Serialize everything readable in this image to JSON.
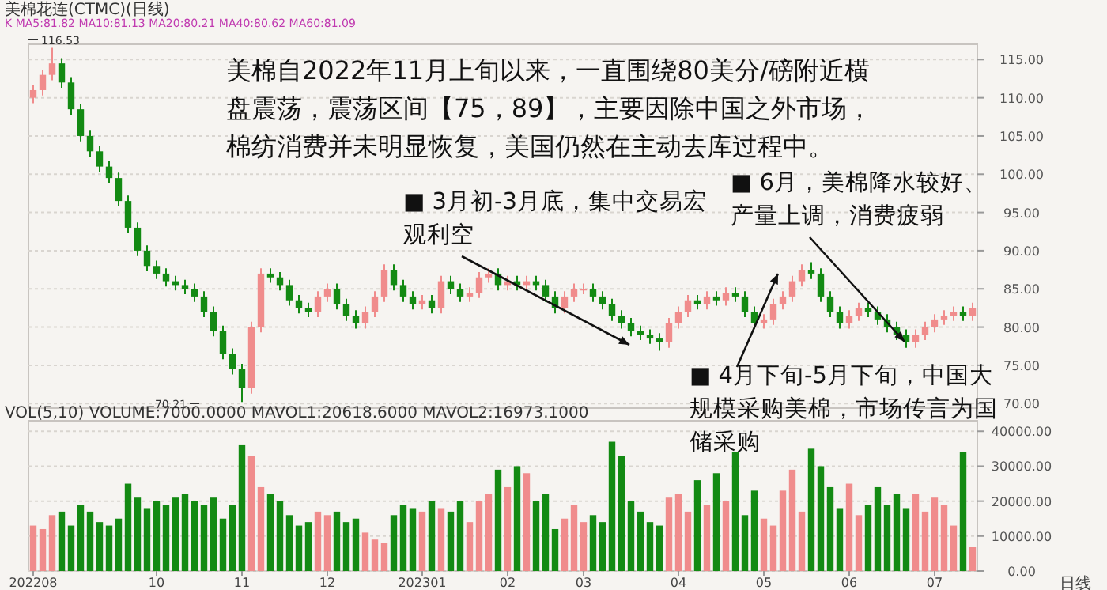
{
  "chart_data": [
    {
      "type": "candlestick",
      "title": "美棉花连(CTMC)(日线)",
      "categories": [
        null,
        null,
        null,
        null,
        null,
        null,
        null,
        null,
        null,
        null,
        null,
        null,
        null,
        null,
        null,
        null,
        null,
        null,
        null,
        null,
        null,
        null,
        null,
        null,
        null,
        null,
        null,
        null,
        null,
        null,
        null,
        null,
        null,
        null,
        null,
        null,
        null,
        null,
        null,
        null,
        null,
        null,
        null,
        null,
        null,
        null,
        null,
        null,
        null,
        null,
        null,
        null,
        null,
        null,
        null,
        null,
        null,
        null,
        null,
        null,
        null,
        null,
        null,
        null,
        null,
        null,
        null,
        null,
        null,
        null,
        null,
        null,
        null,
        null,
        null,
        null,
        null,
        null,
        null,
        null,
        null,
        null,
        null,
        null,
        null,
        null,
        null,
        null,
        null,
        null,
        null,
        null,
        null,
        null,
        null,
        null,
        null,
        null,
        null,
        null
      ],
      "ohlc": [
        [
          110,
          111.7,
          109.3,
          111
        ],
        [
          111,
          113.7,
          110.3,
          113
        ],
        [
          113,
          116.53,
          112.3,
          114.5
        ],
        [
          114.5,
          115.2,
          111.3,
          112
        ],
        [
          112,
          112.7,
          107.8,
          108.5
        ],
        [
          108.5,
          109.2,
          104.3,
          105
        ],
        [
          105,
          105.7,
          102.3,
          103
        ],
        [
          103,
          103.7,
          100.3,
          101
        ],
        [
          101,
          101.7,
          98.8,
          99.5
        ],
        [
          99.5,
          100.2,
          95.8,
          96.5
        ],
        [
          96.5,
          97.2,
          92.3,
          93
        ],
        [
          93,
          93.7,
          89.3,
          90
        ],
        [
          90,
          90.7,
          87.3,
          88
        ],
        [
          88,
          88.7,
          86.3,
          87
        ],
        [
          87,
          87.7,
          85.3,
          86
        ],
        [
          86,
          86.7,
          84.8,
          85.5
        ],
        [
          85.5,
          86.2,
          84.3,
          85
        ],
        [
          85,
          85.7,
          83.3,
          84
        ],
        [
          84,
          84.7,
          81.3,
          82
        ],
        [
          82,
          82.7,
          78.8,
          79.5
        ],
        [
          79.5,
          80.2,
          75.8,
          76.5
        ],
        [
          76.5,
          77.2,
          73.8,
          74.5
        ],
        [
          74.5,
          75.2,
          70.21,
          72
        ],
        [
          72,
          80.7,
          71.3,
          80
        ],
        [
          80,
          87.7,
          79.3,
          87
        ],
        [
          87,
          87.7,
          85.8,
          86.5
        ],
        [
          86.5,
          87.2,
          84.8,
          85.5
        ],
        [
          85.5,
          86.2,
          82.8,
          83.5
        ],
        [
          83.5,
          84.2,
          81.8,
          82.5
        ],
        [
          82.5,
          83.2,
          81.3,
          82
        ],
        [
          82,
          84.7,
          81.3,
          84
        ],
        [
          84,
          85.7,
          83.3,
          85
        ],
        [
          85,
          85.7,
          82.3,
          83
        ],
        [
          83,
          83.7,
          80.8,
          81.5
        ],
        [
          81.5,
          82.2,
          79.8,
          80.5
        ],
        [
          80.5,
          82.7,
          79.8,
          82
        ],
        [
          82,
          84.7,
          81.3,
          84
        ],
        [
          84,
          88.2,
          83.3,
          87.5
        ],
        [
          87.5,
          88.2,
          84.8,
          85.5
        ],
        [
          85.5,
          86.2,
          83.3,
          84
        ],
        [
          84,
          84.7,
          82.3,
          83
        ],
        [
          83,
          84.2,
          82.3,
          83.5
        ],
        [
          83.5,
          84.2,
          81.8,
          82.5
        ],
        [
          82.5,
          86.7,
          81.8,
          86
        ],
        [
          86,
          86.7,
          84.3,
          85
        ],
        [
          85,
          85.7,
          83.3,
          84
        ],
        [
          84,
          85.2,
          83.3,
          84.5
        ],
        [
          84.5,
          87.2,
          83.8,
          86.5
        ],
        [
          86.5,
          87.7,
          85.8,
          87
        ],
        [
          87,
          87.7,
          84.8,
          85.5
        ],
        [
          85.5,
          86.7,
          84.8,
          86
        ],
        [
          86,
          86.7,
          84.8,
          85.5
        ],
        [
          85.5,
          86.7,
          84.8,
          86
        ],
        [
          86,
          86.7,
          84.8,
          85.5
        ],
        [
          85.5,
          86.2,
          83.3,
          84
        ],
        [
          84,
          84.7,
          81.8,
          82.5
        ],
        [
          82.5,
          84.7,
          81.8,
          84
        ],
        [
          84,
          85.7,
          83.3,
          85
        ],
        [
          85,
          85.7,
          84.3,
          85
        ],
        [
          85,
          85.7,
          83.3,
          84
        ],
        [
          84,
          84.7,
          82.3,
          83
        ],
        [
          83,
          83.7,
          80.8,
          81.5
        ],
        [
          81.5,
          82.2,
          79.8,
          80.5
        ],
        [
          80.5,
          81.2,
          78.8,
          79.5
        ],
        [
          79.5,
          80.2,
          78.3,
          79
        ],
        [
          79,
          79.7,
          77.8,
          78.5
        ],
        [
          78.5,
          79.2,
          76.9,
          78
        ],
        [
          78,
          81.2,
          77.3,
          80.5
        ],
        [
          80.5,
          82.7,
          79.8,
          82
        ],
        [
          82,
          84.2,
          81.3,
          83.5
        ],
        [
          83.5,
          84.2,
          82.3,
          83
        ],
        [
          83,
          84.7,
          82.3,
          84
        ],
        [
          84,
          84.7,
          82.8,
          83.5
        ],
        [
          83.5,
          85.2,
          82.8,
          84.5
        ],
        [
          84.5,
          85.2,
          83.3,
          84
        ],
        [
          84,
          84.7,
          81.3,
          82
        ],
        [
          82,
          82.7,
          79.8,
          80.5
        ],
        [
          80.5,
          81.7,
          79.8,
          81
        ],
        [
          81,
          83.7,
          80.3,
          83
        ],
        [
          83,
          84.7,
          82.3,
          84
        ],
        [
          84,
          86.7,
          83.3,
          86
        ],
        [
          86,
          88.2,
          85.3,
          87.5
        ],
        [
          87.5,
          88.5,
          86.3,
          87
        ],
        [
          87,
          87.7,
          83.3,
          84
        ],
        [
          84,
          84.7,
          81.3,
          82
        ],
        [
          82,
          82.7,
          79.8,
          80.5
        ],
        [
          80.5,
          82.2,
          79.8,
          81.5
        ],
        [
          81.5,
          83.2,
          80.8,
          82.5
        ],
        [
          82.5,
          83.2,
          81.3,
          82
        ],
        [
          82,
          82.7,
          80.3,
          81
        ],
        [
          81,
          81.7,
          79.3,
          80
        ],
        [
          80,
          80.7,
          78.3,
          79
        ],
        [
          79,
          79.7,
          77.3,
          78
        ],
        [
          78,
          79.7,
          77.3,
          79
        ],
        [
          79,
          80.7,
          78.3,
          80
        ],
        [
          80,
          81.7,
          79.3,
          81
        ],
        [
          81,
          82.2,
          80.3,
          81.5
        ],
        [
          81.5,
          82.7,
          80.8,
          82
        ],
        [
          82,
          82.7,
          80.8,
          81.5
        ],
        [
          81.5,
          83.2,
          80.8,
          82.5
        ]
      ],
      "colors": [
        "#f08c8c",
        "#f08c8c",
        "#f08c8c",
        "#138a13",
        "#138a13",
        "#138a13",
        "#138a13",
        "#138a13",
        "#138a13",
        "#138a13",
        "#138a13",
        "#138a13",
        "#138a13",
        "#138a13",
        "#138a13",
        "#138a13",
        "#138a13",
        "#138a13",
        "#138a13",
        "#138a13",
        "#138a13",
        "#138a13",
        "#138a13",
        "#f08c8c",
        "#f08c8c",
        "#138a13",
        "#138a13",
        "#138a13",
        "#138a13",
        "#138a13",
        "#f08c8c",
        "#f08c8c",
        "#138a13",
        "#138a13",
        "#138a13",
        "#f08c8c",
        "#f08c8c",
        "#f08c8c",
        "#138a13",
        "#138a13",
        "#138a13",
        "#f08c8c",
        "#138a13",
        "#f08c8c",
        "#138a13",
        "#138a13",
        "#f08c8c",
        "#f08c8c",
        "#f08c8c",
        "#138a13",
        "#f08c8c",
        "#138a13",
        "#f08c8c",
        "#138a13",
        "#138a13",
        "#138a13",
        "#f08c8c",
        "#f08c8c",
        "#f08c8c",
        "#138a13",
        "#138a13",
        "#138a13",
        "#138a13",
        "#138a13",
        "#138a13",
        "#138a13",
        "#138a13",
        "#f08c8c",
        "#f08c8c",
        "#f08c8c",
        "#138a13",
        "#f08c8c",
        "#138a13",
        "#f08c8c",
        "#138a13",
        "#138a13",
        "#138a13",
        "#f08c8c",
        "#f08c8c",
        "#f08c8c",
        "#f08c8c",
        "#f08c8c",
        "#138a13",
        "#138a13",
        "#138a13",
        "#138a13",
        "#f08c8c",
        "#f08c8c",
        "#138a13",
        "#138a13",
        "#138a13",
        "#138a13",
        "#138a13",
        "#f08c8c",
        "#f08c8c",
        "#f08c8c",
        "#f08c8c",
        "#f08c8c",
        "#138a13",
        "#f08c8c"
      ],
      "ylim": [
        69.4,
        117
      ],
      "yticks": [
        {
          "value": 70,
          "label": "70.00"
        },
        {
          "value": 75,
          "label": "75.00"
        },
        {
          "value": 80,
          "label": "80.00"
        },
        {
          "value": 85,
          "label": "85.00"
        },
        {
          "value": 90,
          "label": "90.00"
        },
        {
          "value": 95,
          "label": "95.00"
        },
        {
          "value": 100,
          "label": "100.00"
        },
        {
          "value": 105,
          "label": "105.00"
        },
        {
          "value": 110,
          "label": "110.00"
        },
        {
          "value": 115,
          "label": "115.00"
        }
      ],
      "tick_labels": "y",
      "grid": "y",
      "annotations": [
        "K  MA5:81.82  MA10:81.13  MA20:80.21  MA40:80.62  MA60:81.09",
        "美棉自2022年11月上旬以来，一直围绕80美分/磅附近横盘震荡，震荡区间【75，89】，主要因除中国之外市场，棉纺消费并未明显恢复，美国仍然在主动去库过程中。",
        "■ 3月初-3月底，集中交易宏观利空",
        "■ 6月，美棉降水较好、产量上调，消费疲弱",
        "■ 4月下旬-5月下旬，中国大规模采购美棉，市场传言为国储采购",
        "116.53",
        "70.21"
      ]
    },
    {
      "type": "bar",
      "title": "VOL(5,10)  VOLUME:7000.0000  MAVOL1:20618.6000  MAVOL2:16973.1000",
      "categories": [
        "202208",
        null,
        null,
        null,
        null,
        null,
        null,
        null,
        null,
        null,
        null,
        null,
        null,
        "10",
        null,
        null,
        null,
        null,
        null,
        null,
        null,
        null,
        "11",
        null,
        null,
        null,
        null,
        null,
        null,
        null,
        null,
        "12",
        null,
        null,
        null,
        null,
        null,
        null,
        null,
        null,
        null,
        "202301",
        null,
        null,
        null,
        null,
        null,
        null,
        null,
        null,
        "02",
        null,
        null,
        null,
        null,
        null,
        null,
        null,
        "03",
        null,
        null,
        null,
        null,
        null,
        null,
        null,
        null,
        null,
        "04",
        null,
        null,
        null,
        null,
        null,
        null,
        null,
        null,
        "05",
        null,
        null,
        null,
        null,
        null,
        null,
        null,
        null,
        "06",
        null,
        null,
        null,
        null,
        null,
        null,
        null,
        null,
        "07",
        null,
        null,
        null,
        null
      ],
      "values": [
        13000,
        12000,
        16000,
        17000,
        13000,
        19000,
        17000,
        14000,
        13000,
        15000,
        25000,
        21000,
        18000,
        20000,
        19000,
        21000,
        22000,
        20000,
        19000,
        21000,
        15000,
        19000,
        36000,
        33000,
        24000,
        22000,
        20000,
        16000,
        13000,
        14000,
        17000,
        16000,
        17000,
        14000,
        15000,
        11000,
        9000,
        8000,
        16000,
        19000,
        18000,
        17000,
        20000,
        18000,
        17000,
        20000,
        14000,
        20000,
        22000,
        29000,
        24000,
        30000,
        28000,
        20000,
        22000,
        12000,
        15000,
        19000,
        14000,
        16000,
        14000,
        37000,
        33000,
        20000,
        17000,
        14000,
        13000,
        21000,
        22000,
        17000,
        26000,
        19000,
        28000,
        20000,
        34000,
        16000,
        23000,
        15000,
        13000,
        23000,
        29000,
        17000,
        35000,
        30000,
        24000,
        18000,
        25000,
        16000,
        19000,
        24000,
        19000,
        22000,
        18000,
        22000,
        17000,
        21000,
        19000,
        13000,
        34000,
        7000
      ],
      "colors": [
        "#f08c8c",
        "#f08c8c",
        "#f08c8c",
        "#138a13",
        "#138a13",
        "#138a13",
        "#138a13",
        "#138a13",
        "#138a13",
        "#138a13",
        "#138a13",
        "#138a13",
        "#138a13",
        "#138a13",
        "#138a13",
        "#138a13",
        "#138a13",
        "#138a13",
        "#138a13",
        "#138a13",
        "#138a13",
        "#138a13",
        "#138a13",
        "#f08c8c",
        "#f08c8c",
        "#138a13",
        "#138a13",
        "#138a13",
        "#138a13",
        "#138a13",
        "#f08c8c",
        "#f08c8c",
        "#138a13",
        "#138a13",
        "#138a13",
        "#f08c8c",
        "#f08c8c",
        "#f08c8c",
        "#138a13",
        "#138a13",
        "#138a13",
        "#f08c8c",
        "#138a13",
        "#f08c8c",
        "#138a13",
        "#138a13",
        "#f08c8c",
        "#f08c8c",
        "#f08c8c",
        "#138a13",
        "#f08c8c",
        "#138a13",
        "#f08c8c",
        "#138a13",
        "#138a13",
        "#138a13",
        "#f08c8c",
        "#f08c8c",
        "#f08c8c",
        "#138a13",
        "#138a13",
        "#138a13",
        "#138a13",
        "#138a13",
        "#138a13",
        "#138a13",
        "#138a13",
        "#f08c8c",
        "#f08c8c",
        "#f08c8c",
        "#138a13",
        "#f08c8c",
        "#138a13",
        "#f08c8c",
        "#138a13",
        "#138a13",
        "#138a13",
        "#f08c8c",
        "#f08c8c",
        "#f08c8c",
        "#f08c8c",
        "#f08c8c",
        "#138a13",
        "#138a13",
        "#138a13",
        "#138a13",
        "#f08c8c",
        "#f08c8c",
        "#138a13",
        "#138a13",
        "#138a13",
        "#138a13",
        "#138a13",
        "#f08c8c",
        "#f08c8c",
        "#f08c8c",
        "#f08c8c",
        "#f08c8c",
        "#138a13",
        "#f08c8c"
      ],
      "ylim": [
        0,
        43000
      ],
      "yticks": [
        {
          "value": 0,
          "label": "0.00"
        },
        {
          "value": 10000,
          "label": "10000.00"
        },
        {
          "value": 20000,
          "label": "20000.00"
        },
        {
          "value": 30000,
          "label": "30000.00"
        },
        {
          "value": 40000,
          "label": "40000.00"
        }
      ],
      "grid": "y",
      "xlabel": "日线"
    }
  ]
}
